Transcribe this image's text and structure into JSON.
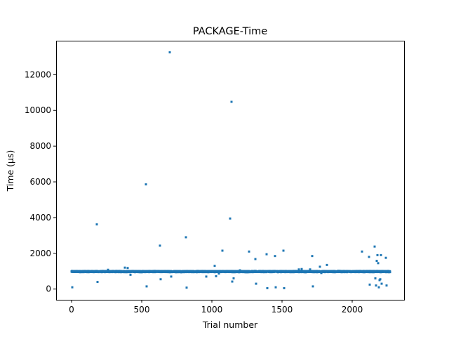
{
  "chart_data": {
    "type": "scatter",
    "title": "PACKAGE-Time",
    "xlabel": "Trial number",
    "ylabel": "Time (µs)",
    "xlim": [
      -110,
      2370
    ],
    "ylim": [
      -600,
      13900
    ],
    "xticks": [
      0,
      500,
      1000,
      1500,
      2000
    ],
    "yticks": [
      0,
      2000,
      4000,
      6000,
      8000,
      10000,
      12000
    ],
    "grid": false,
    "legend": "none",
    "marker_color": "#1f77b4",
    "baseline": {
      "description_range": [
        0,
        2270
      ],
      "center": 980,
      "spread": 35,
      "count": 2270
    },
    "series": [
      {
        "values": [
          [
            5,
            100
          ],
          [
            180,
            3620
          ],
          [
            185,
            400
          ],
          [
            380,
            1200
          ],
          [
            400,
            1180
          ],
          [
            420,
            800
          ],
          [
            530,
            5860
          ],
          [
            535,
            150
          ],
          [
            630,
            2430
          ],
          [
            635,
            550
          ],
          [
            700,
            13250
          ],
          [
            710,
            700
          ],
          [
            815,
            2900
          ],
          [
            820,
            80
          ],
          [
            1020,
            1300
          ],
          [
            1030,
            720
          ],
          [
            1075,
            2150
          ],
          [
            1130,
            3950
          ],
          [
            1140,
            10480
          ],
          [
            1145,
            420
          ],
          [
            1155,
            600
          ],
          [
            1265,
            2100
          ],
          [
            1310,
            1680
          ],
          [
            1315,
            300
          ],
          [
            1390,
            1950
          ],
          [
            1395,
            50
          ],
          [
            1450,
            1850
          ],
          [
            1455,
            100
          ],
          [
            1510,
            2150
          ],
          [
            1515,
            50
          ],
          [
            1620,
            1100
          ],
          [
            1640,
            1120
          ],
          [
            1715,
            1850
          ],
          [
            1720,
            150
          ],
          [
            1770,
            1250
          ],
          [
            1780,
            900
          ],
          [
            1820,
            1350
          ],
          [
            2070,
            2100
          ],
          [
            2120,
            1800
          ],
          [
            2125,
            250
          ],
          [
            2160,
            2380
          ],
          [
            2165,
            600
          ],
          [
            2170,
            200
          ],
          [
            2175,
            1580
          ],
          [
            2180,
            1900
          ],
          [
            2185,
            1450
          ],
          [
            2190,
            100
          ],
          [
            2195,
            500
          ],
          [
            2200,
            550
          ],
          [
            2205,
            1900
          ],
          [
            2210,
            300
          ],
          [
            2240,
            1750
          ],
          [
            2245,
            200
          ],
          [
            1900,
            1020
          ],
          [
            960,
            700
          ],
          [
            1200,
            1050
          ],
          [
            260,
            1080
          ],
          [
            1050,
            870
          ],
          [
            1700,
            1100
          ],
          [
            2150,
            1000
          ]
        ]
      }
    ]
  }
}
